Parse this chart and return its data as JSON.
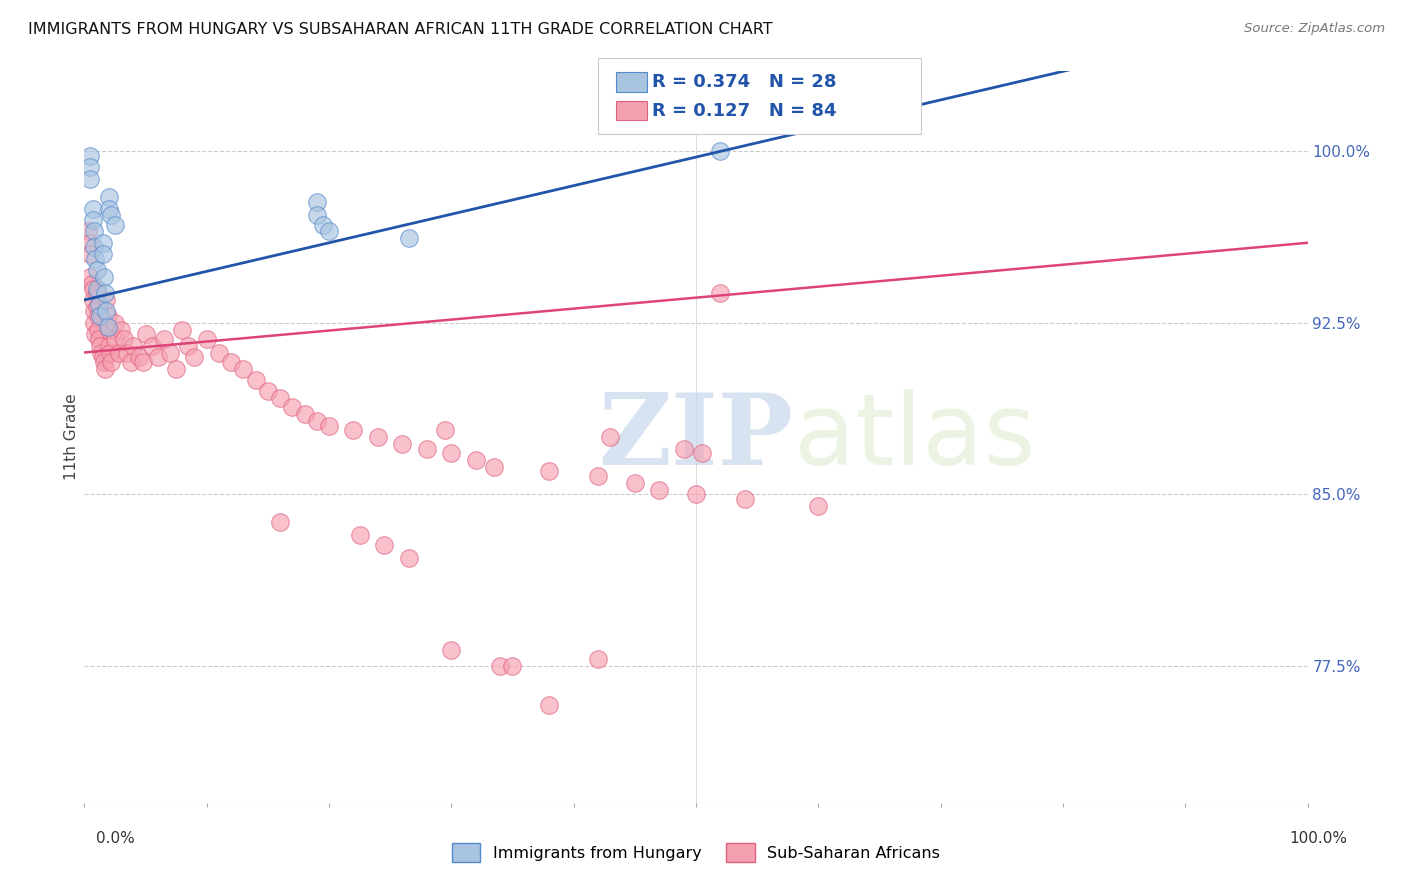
{
  "title": "IMMIGRANTS FROM HUNGARY VS SUBSAHARAN AFRICAN 11TH GRADE CORRELATION CHART",
  "source": "Source: ZipAtlas.com",
  "ylabel": "11th Grade",
  "ytick_labels": [
    "100.0%",
    "92.5%",
    "85.0%",
    "77.5%"
  ],
  "ytick_values": [
    1.0,
    0.925,
    0.85,
    0.775
  ],
  "xlim": [
    0.0,
    1.0
  ],
  "ylim": [
    0.715,
    1.035
  ],
  "blue_R": "0.374",
  "blue_N": "28",
  "pink_R": "0.127",
  "pink_N": "84",
  "blue_color": "#A8C4E0",
  "pink_color": "#F5A0B0",
  "blue_edge_color": "#5588CC",
  "pink_edge_color": "#E06080",
  "blue_line_color": "#2255AA",
  "pink_line_color": "#DD4477",
  "legend_label_blue": "Immigrants from Hungary",
  "legend_label_pink": "Sub-Saharan Africans",
  "watermark_zip": "ZIP",
  "watermark_atlas": "atlas",
  "blue_scatter_x": [
    0.005,
    0.005,
    0.005,
    0.007,
    0.007,
    0.008,
    0.008,
    0.009,
    0.01,
    0.01,
    0.012,
    0.013,
    0.015,
    0.015,
    0.016,
    0.017,
    0.018,
    0.019,
    0.02,
    0.02,
    0.022,
    0.025,
    0.19,
    0.19,
    0.195,
    0.2,
    0.265,
    0.52
  ],
  "blue_scatter_y": [
    0.998,
    0.993,
    0.988,
    0.975,
    0.97,
    0.965,
    0.958,
    0.953,
    0.948,
    0.94,
    0.933,
    0.928,
    0.96,
    0.955,
    0.945,
    0.938,
    0.93,
    0.923,
    0.98,
    0.975,
    0.972,
    0.968,
    0.978,
    0.972,
    0.968,
    0.965,
    0.962,
    1.0
  ],
  "pink_scatter_x": [
    0.003,
    0.004,
    0.005,
    0.005,
    0.006,
    0.007,
    0.007,
    0.008,
    0.008,
    0.009,
    0.01,
    0.01,
    0.011,
    0.011,
    0.012,
    0.013,
    0.014,
    0.015,
    0.016,
    0.017,
    0.018,
    0.019,
    0.02,
    0.02,
    0.021,
    0.022,
    0.025,
    0.025,
    0.028,
    0.03,
    0.032,
    0.035,
    0.038,
    0.04,
    0.045,
    0.048,
    0.05,
    0.055,
    0.06,
    0.065,
    0.07,
    0.075,
    0.08,
    0.085,
    0.09,
    0.1,
    0.11,
    0.12,
    0.13,
    0.14,
    0.15,
    0.16,
    0.17,
    0.18,
    0.19,
    0.2,
    0.22,
    0.24,
    0.26,
    0.28,
    0.3,
    0.32,
    0.335,
    0.38,
    0.42,
    0.45,
    0.47,
    0.5,
    0.54,
    0.6,
    0.295,
    0.43,
    0.49,
    0.505,
    0.16,
    0.225,
    0.245,
    0.265,
    0.3,
    0.34,
    0.35,
    0.38,
    0.42,
    0.52
  ],
  "pink_scatter_y": [
    0.965,
    0.96,
    0.955,
    0.945,
    0.942,
    0.94,
    0.935,
    0.93,
    0.925,
    0.92,
    0.938,
    0.932,
    0.928,
    0.922,
    0.918,
    0.915,
    0.912,
    0.91,
    0.908,
    0.905,
    0.935,
    0.928,
    0.922,
    0.915,
    0.912,
    0.908,
    0.925,
    0.918,
    0.912,
    0.922,
    0.918,
    0.912,
    0.908,
    0.915,
    0.91,
    0.908,
    0.92,
    0.915,
    0.91,
    0.918,
    0.912,
    0.905,
    0.922,
    0.915,
    0.91,
    0.918,
    0.912,
    0.908,
    0.905,
    0.9,
    0.895,
    0.892,
    0.888,
    0.885,
    0.882,
    0.88,
    0.878,
    0.875,
    0.872,
    0.87,
    0.868,
    0.865,
    0.862,
    0.86,
    0.858,
    0.855,
    0.852,
    0.85,
    0.848,
    0.845,
    0.878,
    0.875,
    0.87,
    0.868,
    0.838,
    0.832,
    0.828,
    0.822,
    0.782,
    0.775,
    0.775,
    0.758,
    0.778,
    0.938
  ]
}
